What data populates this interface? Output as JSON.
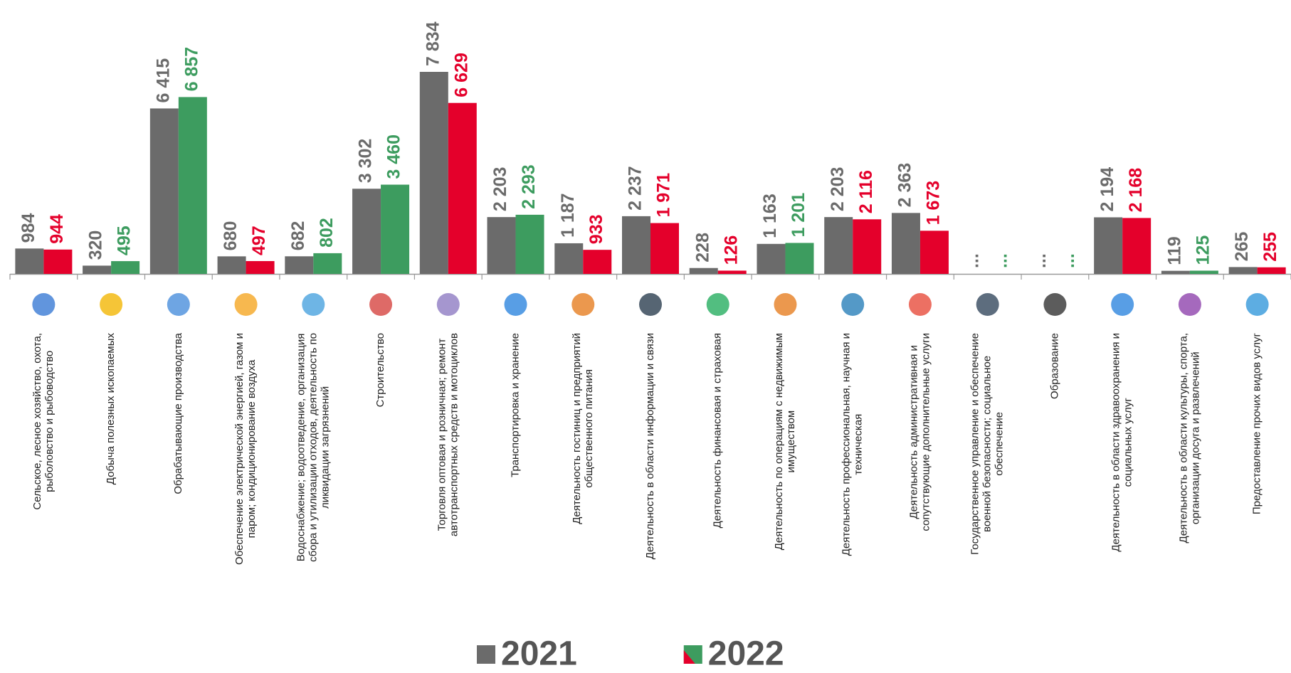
{
  "chart_data": {
    "type": "bar",
    "categories": [
      "Сельское, лесное хозяйство, охота,\nрыболовство и рыбоводство",
      "Добыча полезных ископаемых",
      "Обрабатывающие производства",
      "Обеспечение электрической энергией, газом и\nпаром; кондиционирование воздуха",
      "Водоснабжение; водоотведение, организация\nсбора и утилизации отходов, деятельность по\nликвидации загрязнений",
      "Строительство",
      "Торговля оптовая и розничная; ремонт\nавтотранспортных средств и мотоциклов",
      "Транспортировка и хранение",
      "Деятельность гостиниц и предприятий\nобщественного питания",
      "Деятельность в области информации и связи",
      "Деятельность финансовая и страховая",
      "Деятельность по операциям с недвижимым\nимуществом",
      "Деятельность профессиональная, научная и\nтехническая",
      "Деятельность административная и\nсопутствующие дополнительные услуги",
      "Государственное управление и обеспечение\nвоенной безопасности; социальное\nобеспечение",
      "Образование",
      "Деятельность в области здравоохранения и\nсоциальных услуг",
      "Деятельность в области культуры, спорта,\nорганизации досуга и развлечений",
      "Предоставление прочих видов услуг"
    ],
    "series": [
      {
        "name": "2021",
        "color": "#6b6b6b",
        "values": [
          984,
          320,
          6415,
          680,
          682,
          3302,
          7834,
          2203,
          1187,
          2237,
          228,
          1163,
          2203,
          2363,
          null,
          null,
          2194,
          119,
          265
        ],
        "value_labels": [
          "984",
          "320",
          "6 415",
          "680",
          "682",
          "3 302",
          "7 834",
          "2 203",
          "1 187",
          "2 237",
          "228",
          "1 163",
          "2 203",
          "2 363",
          "...",
          "...",
          "2 194",
          "119",
          "265"
        ]
      },
      {
        "name": "2022",
        "color": "#e4002b",
        "colors": [
          "#e4002b",
          "#3d9c5f",
          "#3d9c5f",
          "#e4002b",
          "#3d9c5f",
          "#3d9c5f",
          "#e4002b",
          "#3d9c5f",
          "#e4002b",
          "#e4002b",
          "#e4002b",
          "#3d9c5f",
          "#e4002b",
          "#e4002b",
          "#3d9c5f",
          "#3d9c5f",
          "#e4002b",
          "#3d9c5f",
          "#e4002b"
        ],
        "values": [
          944,
          495,
          6857,
          497,
          802,
          3460,
          6629,
          2293,
          933,
          1971,
          126,
          1201,
          2116,
          1673,
          null,
          null,
          2168,
          125,
          255
        ],
        "value_labels": [
          "944",
          "495",
          "6 857",
          "497",
          "802",
          "3 460",
          "6 629",
          "2 293",
          "933",
          "1 971",
          "126",
          "1 201",
          "2 116",
          "1 673",
          "...",
          "...",
          "2 168",
          "125",
          "255"
        ]
      }
    ]
  }
}
